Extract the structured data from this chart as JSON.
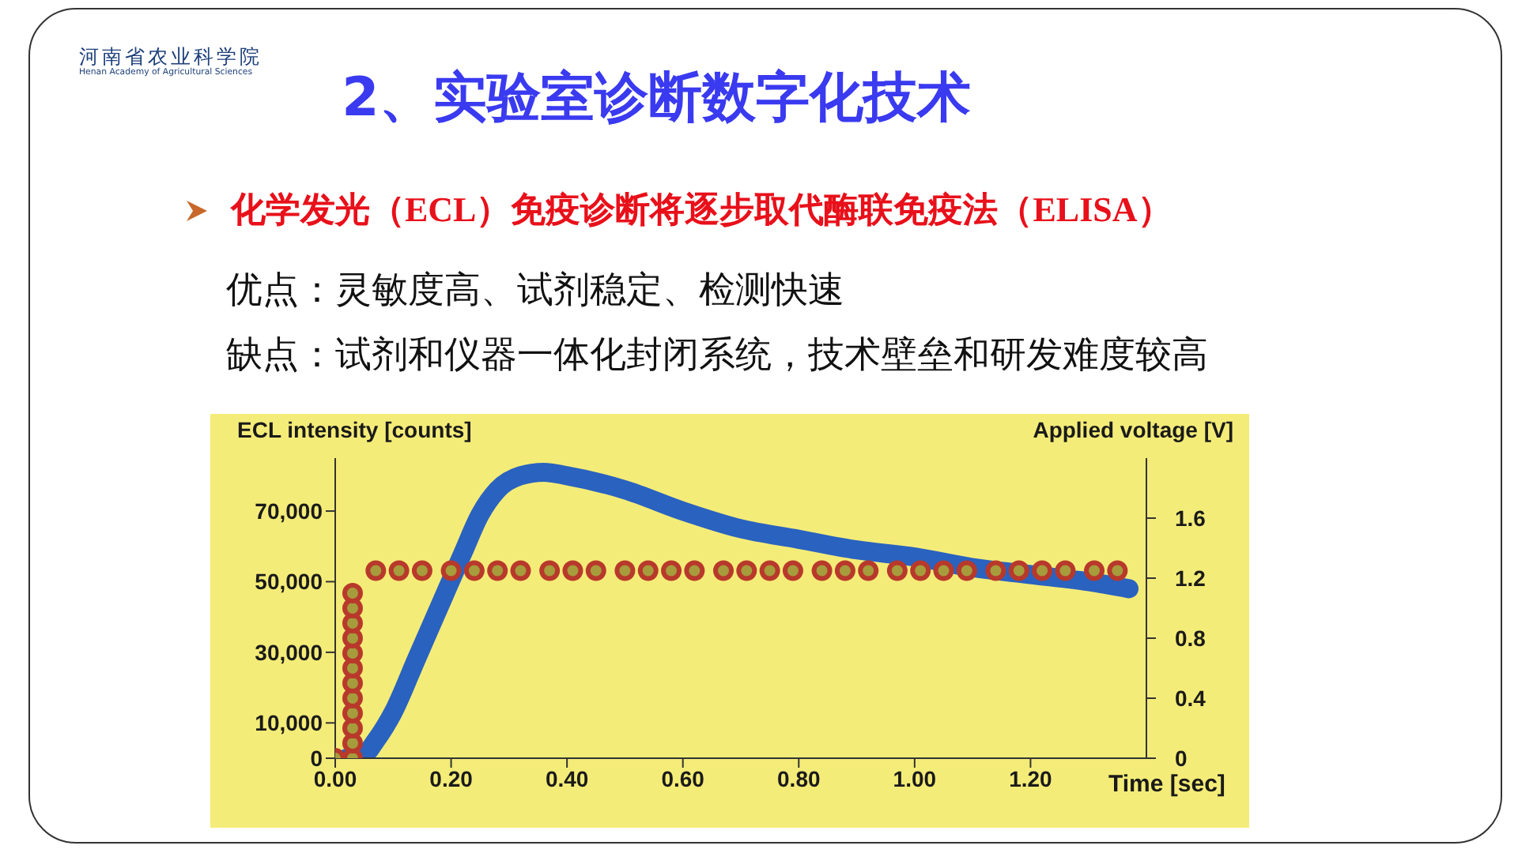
{
  "chart_data": {
    "type": "line",
    "title": "2、实验室诊断数字化技术",
    "subtitle": "化学发光（ECL）免疫诊断将逐步取代酶联免疫法（ELISA）",
    "annotations": [
      "河南省农业科学院",
      "Henan Academy of Agricultural Sciences",
      "优点：灵敏度高、试剂稳定、检测快速",
      "缺点：试剂和仪器一体化封闭系统，技术壁垒和研发难度较高"
    ],
    "xlabel": "Time [sec]",
    "ylabel": "ECL intensity [counts]",
    "y2label": "Applied voltage [V]",
    "xlim": [
      0,
      1.4
    ],
    "xticks": [
      {
        "value": 0,
        "label": "0.00"
      },
      {
        "value": 0.2,
        "label": "0.20"
      },
      {
        "value": 0.4,
        "label": "0.40"
      },
      {
        "value": 0.6,
        "label": "0.60"
      },
      {
        "value": 0.8,
        "label": "0.80"
      },
      {
        "value": 1,
        "label": "1.00"
      },
      {
        "value": 1.2,
        "label": "1.20"
      }
    ],
    "ylim": [
      0,
      85000
    ],
    "yticks": [
      0,
      {
        "value": 10000,
        "label": "10,000"
      },
      {
        "value": 30000,
        "label": "30,000"
      },
      {
        "value": 50000,
        "label": "50,000"
      },
      {
        "value": 70000,
        "label": "70,000"
      }
    ],
    "y2lim": [
      0,
      2
    ],
    "y2ticks": [
      0,
      0.4,
      0.8,
      1.2,
      1.6
    ],
    "series": [
      {
        "color": "#2a62c0",
        "x": [
          0.02,
          0.05,
          0.07,
          0.1,
          0.14,
          0.18,
          0.22,
          0.25,
          0.28,
          0.32,
          0.36,
          0.4,
          0.5,
          0.6,
          0.7,
          0.8,
          0.9,
          1,
          1.1,
          1.2,
          1.3,
          1.37
        ],
        "values": [
          0,
          1000,
          5000,
          13000,
          28000,
          43000,
          58000,
          69000,
          76000,
          80000,
          81000,
          80000,
          76000,
          70000,
          65000,
          62000,
          59000,
          57000,
          54000,
          52000,
          50000,
          48000
        ]
      },
      {
        "type": "scatter",
        "axis": "y2",
        "marker": "circle",
        "color": "#b8392b",
        "x": [
          0,
          0.03,
          0.03,
          0.03,
          0.03,
          0.03,
          0.03,
          0.03,
          0.03,
          0.03,
          0.03,
          0.03,
          0.03,
          0.07,
          0.11,
          0.15,
          0.2,
          0.24,
          0.28,
          0.32,
          0.37,
          0.41,
          0.45,
          0.5,
          0.54,
          0.58,
          0.62,
          0.67,
          0.71,
          0.75,
          0.79,
          0.84,
          0.88,
          0.92,
          0.97,
          1.01,
          1.05,
          1.09,
          1.14,
          1.18,
          1.22,
          1.26,
          1.31,
          1.35
        ],
        "values": [
          0,
          0,
          0.1,
          0.2,
          0.3,
          0.4,
          0.5,
          0.6,
          0.7,
          0.8,
          0.9,
          1,
          1.1,
          1.25,
          1.25,
          1.25,
          1.25,
          1.25,
          1.25,
          1.25,
          1.25,
          1.25,
          1.25,
          1.25,
          1.25,
          1.25,
          1.25,
          1.25,
          1.25,
          1.25,
          1.25,
          1.25,
          1.25,
          1.25,
          1.25,
          1.25,
          1.25,
          1.25,
          1.25,
          1.25,
          1.25,
          1.25,
          1.25,
          1.25
        ]
      }
    ]
  }
}
